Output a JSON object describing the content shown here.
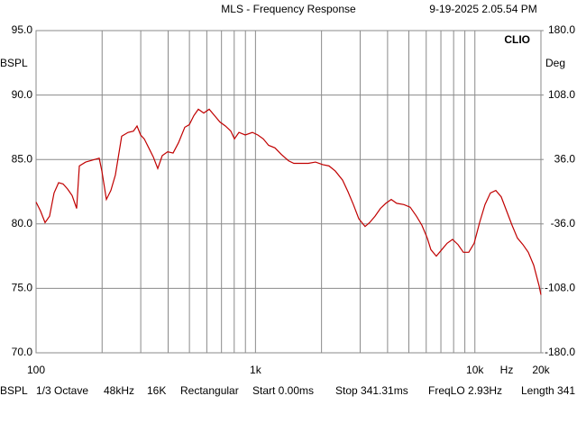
{
  "chart_data": {
    "type": "line",
    "title": "MLS - Frequency Response",
    "timestamp": "9-19-2025 2.05.54 PM",
    "brand": "CLIO",
    "y_label": "BSPL",
    "y2_label": "Deg",
    "x_unit": "Hz",
    "x_log": true,
    "grid": true,
    "xlim": [
      100,
      20000
    ],
    "xticks": [
      100,
      {
        "value": 1000,
        "label": "1k"
      },
      {
        "value": 10000,
        "label": "10k"
      },
      {
        "value": 20000,
        "label": "20k"
      }
    ],
    "xminor_ticks": [
      200,
      300,
      400,
      500,
      600,
      700,
      800,
      900,
      2000,
      3000,
      4000,
      5000,
      6000,
      7000,
      8000,
      9000
    ],
    "ylim": [
      70,
      95
    ],
    "yticks": [
      {
        "value": 70,
        "label": "70.0"
      },
      {
        "value": 75,
        "label": "75.0"
      },
      {
        "value": 80,
        "label": "80.0"
      },
      {
        "value": 85,
        "label": "85.0"
      },
      {
        "value": 90,
        "label": "90.0"
      },
      {
        "value": 95,
        "label": "95.0"
      }
    ],
    "y2lim": [
      -180,
      180
    ],
    "y2ticks": [
      {
        "value": -180,
        "label": "-180.0"
      },
      {
        "value": -108,
        "label": "-108.0"
      },
      {
        "value": -36,
        "label": "-36.0"
      },
      {
        "value": 36,
        "label": "36.0"
      },
      {
        "value": 108,
        "label": "108.0"
      },
      {
        "value": 180,
        "label": "180.0"
      }
    ],
    "x": [
      100,
      104.8,
      109.9,
      115.2,
      120.8,
      126.7,
      132.8,
      139.3,
      146,
      153.1,
      157.5,
      168.3,
      185,
      194,
      199.5,
      209.2,
      219.3,
      229.9,
      245.6,
      262.5,
      277.8,
      288.5,
      299.6,
      311.2,
      326.3,
      342.1,
      358.6,
      376,
      397.9,
      421.2,
      445.9,
      476.3,
      499.4,
      523.6,
      549,
      581.1,
      615.1,
      651.1,
      689.1,
      729.4,
      772.1,
      801.9,
      840.6,
      898,
      968.3,
      1025,
      1085,
      1148,
      1227,
      1310,
      1414,
      1496,
      1614,
      1741,
      1878,
      2026,
      2164,
      2312,
      2494,
      2640,
      2794,
      2958,
      3159,
      3312,
      3506,
      3711,
      3928,
      4157,
      4400,
      4746,
      5070,
      5416,
      5733,
      6068,
      6302,
      6671,
      7061,
      7473,
      7910,
      8372,
      8861,
      9379,
      9924,
      10505,
      11118,
      11768,
      12455,
      13183,
      13953,
      14768,
      15630,
      16544,
      17510,
      18534,
      19616,
      20000
    ],
    "series": [
      {
        "name": "SPL",
        "color": "#c00000",
        "values": [
          81.7,
          81.0,
          80.1,
          80.6,
          82.4,
          83.2,
          83.1,
          82.7,
          82.2,
          81.2,
          84.5,
          84.8,
          85.0,
          85.1,
          84.1,
          81.9,
          82.6,
          83.8,
          86.8,
          87.1,
          87.2,
          87.6,
          86.9,
          86.6,
          85.9,
          85.2,
          84.3,
          85.3,
          85.6,
          85.5,
          86.3,
          87.5,
          87.7,
          88.4,
          88.9,
          88.6,
          88.9,
          88.4,
          87.9,
          87.6,
          87.2,
          86.6,
          87.1,
          86.9,
          87.1,
          86.9,
          86.6,
          86.1,
          85.9,
          85.4,
          84.9,
          84.7,
          84.7,
          84.7,
          84.8,
          84.6,
          84.5,
          84.1,
          83.4,
          82.5,
          81.5,
          80.4,
          79.8,
          80.1,
          80.6,
          81.2,
          81.6,
          81.9,
          81.6,
          81.5,
          81.3,
          80.6,
          79.9,
          78.9,
          78.0,
          77.5,
          78.0,
          78.5,
          78.8,
          78.4,
          77.8,
          77.8,
          78.5,
          80.1,
          81.5,
          82.4,
          82.6,
          82.1,
          81.0,
          79.9,
          78.9,
          78.4,
          77.8,
          76.8,
          75.2,
          74.5
        ]
      }
    ],
    "footer": [
      "BSPL",
      "1/3 Octave",
      "48kHz",
      "16K",
      "Rectangular",
      "Start 0.00ms",
      "Stop 341.31ms",
      "FreqLO 2.93Hz",
      "Length 341"
    ]
  }
}
